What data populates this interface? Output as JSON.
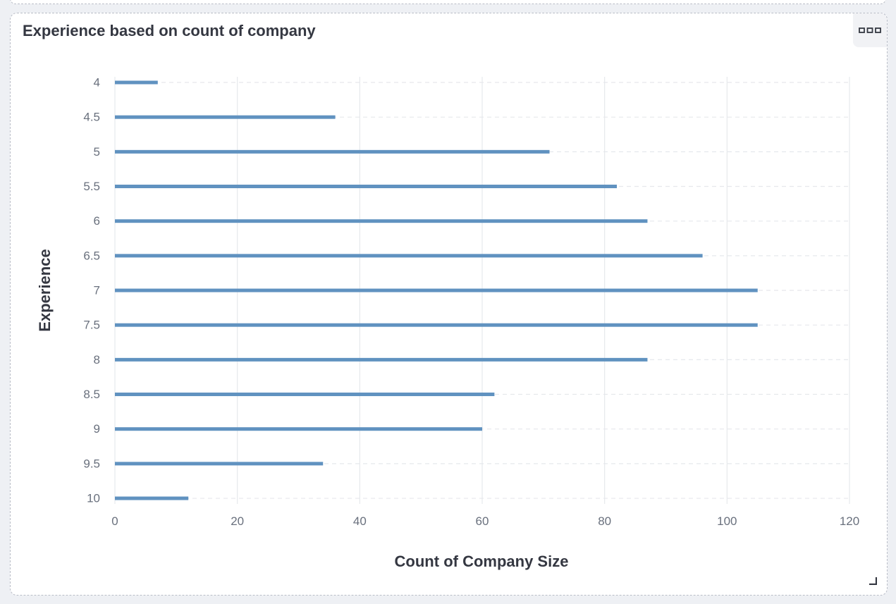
{
  "panel": {
    "title": "Experience based on count of company",
    "options_icon": "ellipsis-boxes-icon",
    "resize_icon": "resize-corner-icon"
  },
  "colors": {
    "bar": "#6092c0",
    "grid": "#e6e8ec",
    "axis_text": "#69707d",
    "label_text": "#343741"
  },
  "chart_data": {
    "type": "bar",
    "orientation": "horizontal",
    "title": "Experience based on count of company",
    "xlabel": "Count of Company Size",
    "ylabel": "Experience",
    "xlim": [
      0,
      120
    ],
    "x_ticks": [
      0,
      20,
      40,
      60,
      80,
      100,
      120
    ],
    "grid": true,
    "categories": [
      "4",
      "4.5",
      "5",
      "5.5",
      "6",
      "6.5",
      "7",
      "7.5",
      "8",
      "8.5",
      "9",
      "9.5",
      "10"
    ],
    "values": [
      7,
      36,
      71,
      82,
      87,
      96,
      105,
      105,
      87,
      62,
      60,
      34,
      12
    ]
  }
}
